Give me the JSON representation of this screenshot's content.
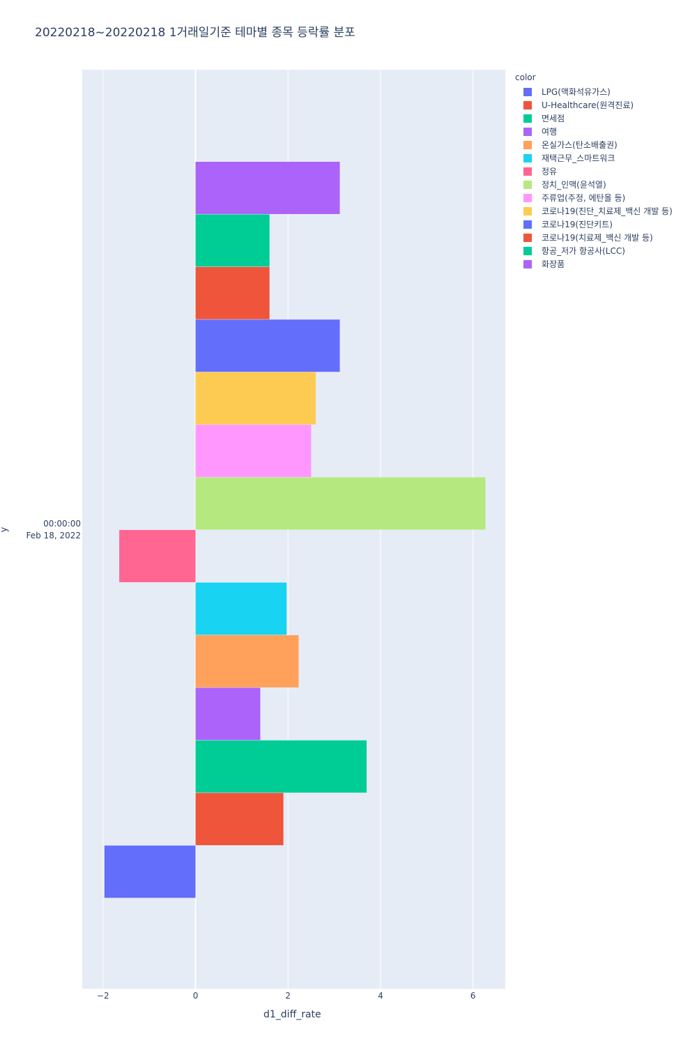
{
  "chart_data": {
    "type": "bar",
    "orientation": "horizontal",
    "title": "20220218~20220218 1거래일기준 테마별 종목 등락률 분포",
    "xlabel": "d1_diff_rate",
    "ylabel": "y",
    "y_tick_line1": "00:00:00",
    "y_tick_line2": "Feb 18, 2022",
    "xlim": [
      -2.45,
      6.7
    ],
    "x_ticks": [
      {
        "value": -2,
        "label": "−2"
      },
      {
        "value": 0,
        "label": "0"
      },
      {
        "value": 2,
        "label": "2"
      },
      {
        "value": 4,
        "label": "4"
      },
      {
        "value": 6,
        "label": "6"
      }
    ],
    "grid": true,
    "legend_title": "color",
    "legend_position": "top-right",
    "series": [
      {
        "name": "LPG(액화석유가스)",
        "value": -1.97,
        "color": "#636efa"
      },
      {
        "name": "U-Healthcare(원격진료)",
        "value": 1.9,
        "color": "#EF553B"
      },
      {
        "name": "면세점",
        "value": 3.7,
        "color": "#00cc96"
      },
      {
        "name": "여행",
        "value": 1.4,
        "color": "#ab63fa"
      },
      {
        "name": "온실가스(탄소배출권)",
        "value": 2.23,
        "color": "#FFA15A"
      },
      {
        "name": "재택근무_스마트워크",
        "value": 1.97,
        "color": "#19d3f3"
      },
      {
        "name": "정유",
        "value": -1.65,
        "color": "#FF6692"
      },
      {
        "name": "정치_인맥(윤석열)",
        "value": 6.27,
        "color": "#B6E880"
      },
      {
        "name": "주류업(주정, 에탄올 등)",
        "value": 2.5,
        "color": "#FF97FF"
      },
      {
        "name": "코로나19(진단_치료제_백신 개발 등)",
        "value": 2.6,
        "color": "#FECB52"
      },
      {
        "name": "코로나19(진단키트)",
        "value": 3.12,
        "color": "#636efa"
      },
      {
        "name": "코로나19(치료제_백신 개발 등)",
        "value": 1.6,
        "color": "#EF553B"
      },
      {
        "name": "항공_저가 항공사(LCC)",
        "value": 1.6,
        "color": "#00cc96"
      },
      {
        "name": "화장품",
        "value": 3.12,
        "color": "#ab63fa"
      }
    ]
  }
}
